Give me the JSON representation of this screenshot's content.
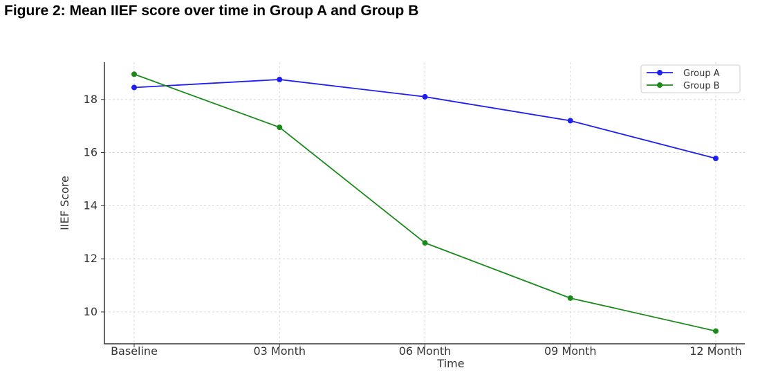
{
  "figure": {
    "title": "Figure 2: Mean IIEF score over time in Group A and Group B"
  },
  "chart_data": {
    "type": "line",
    "title": "",
    "xlabel": "Time",
    "ylabel": "IIEF Score",
    "categories": [
      "Baseline",
      "03 Month",
      "06 Month",
      "09 Month",
      "12 Month"
    ],
    "ylim": [
      8.8,
      19.4
    ],
    "yticks": [
      10,
      12,
      14,
      16,
      18
    ],
    "grid": true,
    "legend_position": "top-right",
    "series": [
      {
        "name": "Group A",
        "color": "#1f1fef",
        "values": [
          18.45,
          18.75,
          18.1,
          17.2,
          15.78
        ]
      },
      {
        "name": "Group B",
        "color": "#1a8a1a",
        "values": [
          18.95,
          16.95,
          12.6,
          10.52,
          9.28
        ]
      }
    ]
  }
}
